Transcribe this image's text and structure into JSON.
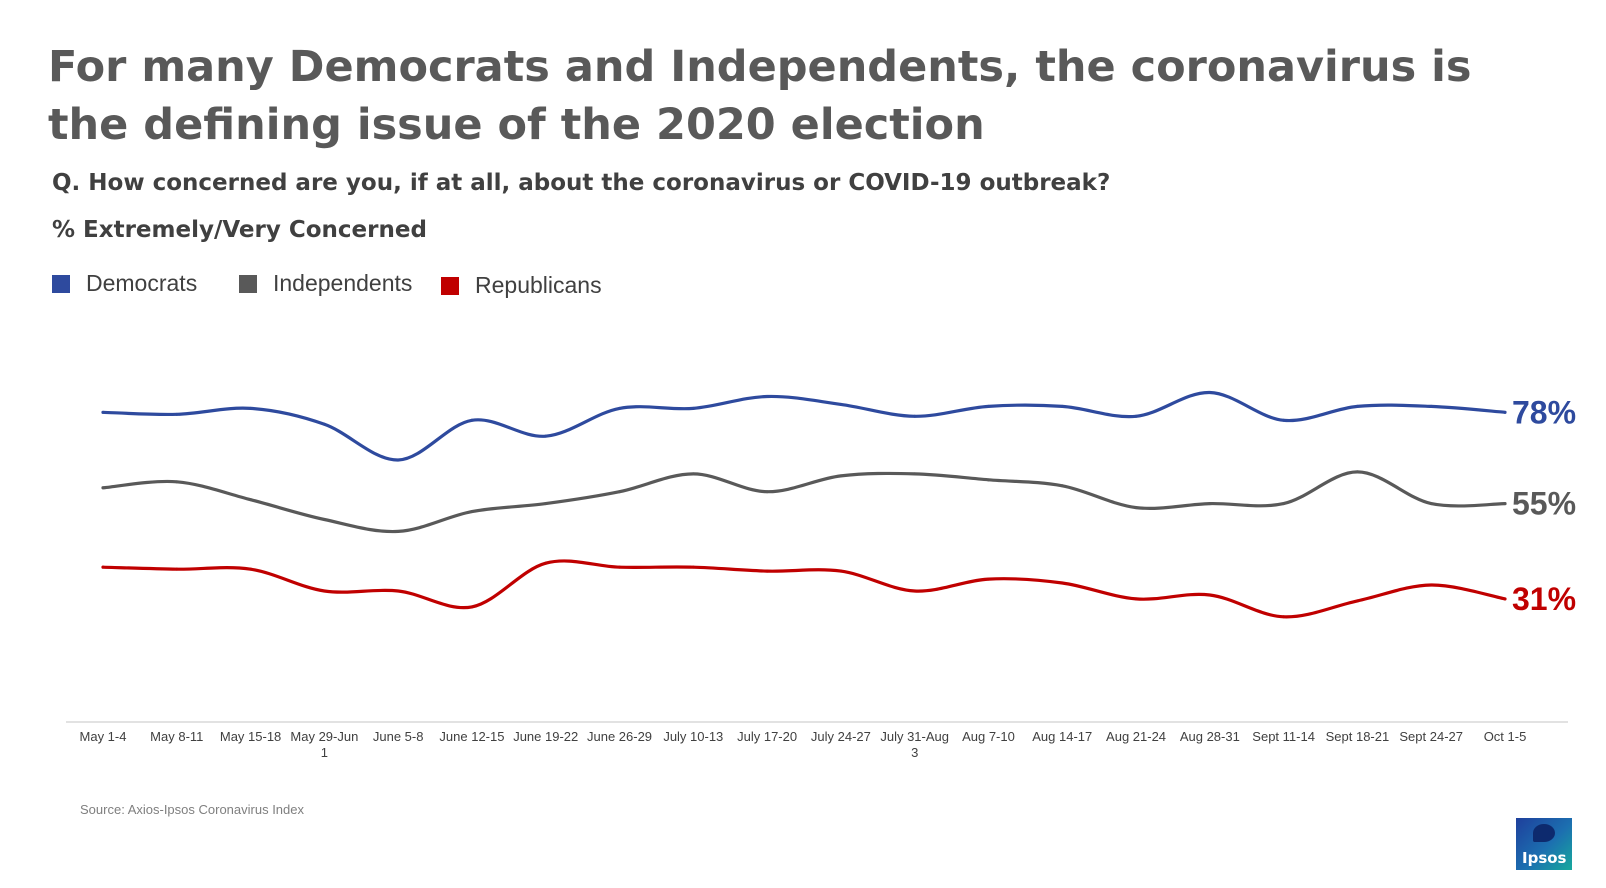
{
  "header": {
    "title": "For many Democrats and Independents, the coronavirus is the defining issue of the 2020 election",
    "question": "Q. How concerned are you, if at all, about the coronavirus or COVID-19 outbreak?",
    "measure": "% Extremely/Very Concerned"
  },
  "legend": [
    {
      "label": "Democrats",
      "color": "#2e4a9e"
    },
    {
      "label": "Independents",
      "color": "#595959"
    },
    {
      "label": "Republicans",
      "color": "#c00000"
    }
  ],
  "chart_data": {
    "type": "line",
    "title": "For many Democrats and Independents, the coronavirus is the defining issue of the 2020 election",
    "subtitle": "Q. How concerned are you, if at all, about the coronavirus or COVID-19 outbreak?",
    "ylabel": "% Extremely/Very Concerned",
    "xlabel": "",
    "ylim": [
      0,
      100
    ],
    "grid": false,
    "legend_position": "top-left",
    "categories": [
      "May 1-4",
      "May 8-11",
      "May 15-18",
      "May 29-Jun 1",
      "June 5-8",
      "June 12-15",
      "June 19-22",
      "June 26-29",
      "July 10-13",
      "July 17-20",
      "July 24-27",
      "July 31-Aug 3",
      "Aug 7-10",
      "Aug 14-17",
      "Aug 21-24",
      "Aug 28-31",
      "Sept 11-14",
      "Sept 18-21",
      "Sept 24-27",
      "Oct 1-5"
    ],
    "category_lines": [
      [
        "May 1-4"
      ],
      [
        "May 8-11"
      ],
      [
        "May 15-18"
      ],
      [
        "May 29-Jun",
        "1"
      ],
      [
        "June 5-8"
      ],
      [
        "June 12-15"
      ],
      [
        "June 19-22"
      ],
      [
        "June 26-29"
      ],
      [
        "July 10-13"
      ],
      [
        "July 17-20"
      ],
      [
        "July 24-27"
      ],
      [
        "July 31-Aug",
        "3"
      ],
      [
        "Aug 7-10"
      ],
      [
        "Aug 14-17"
      ],
      [
        "Aug 21-24"
      ],
      [
        "Aug 28-31"
      ],
      [
        "Sept 11-14"
      ],
      [
        "Sept 18-21"
      ],
      [
        "Sept 24-27"
      ],
      [
        "Oct 1-5"
      ]
    ],
    "series": [
      {
        "name": "Democrats",
        "color": "#2e4a9e",
        "end_label": "78%",
        "values": [
          78,
          77.5,
          79,
          75,
          66,
          76,
          72,
          79,
          79,
          82,
          80,
          77,
          79.5,
          79.5,
          77,
          83,
          76,
          79.5,
          79.5,
          78
        ]
      },
      {
        "name": "Independents",
        "color": "#595959",
        "end_label": "55%",
        "values": [
          59,
          60.5,
          56,
          51,
          48,
          53,
          55,
          58,
          62.5,
          58,
          62,
          62.5,
          61,
          59.5,
          54,
          55,
          55,
          63,
          55,
          55
        ]
      },
      {
        "name": "Republicans",
        "color": "#c00000",
        "end_label": "31%",
        "values": [
          39,
          38.5,
          38.5,
          33,
          33,
          29,
          40,
          39,
          39,
          38,
          38,
          33,
          36,
          35,
          31,
          32,
          26.5,
          30.5,
          34.5,
          31
        ]
      }
    ]
  },
  "source": "Source: Axios-Ipsos Coronavirus Index",
  "logo": {
    "text": "Ipsos"
  }
}
